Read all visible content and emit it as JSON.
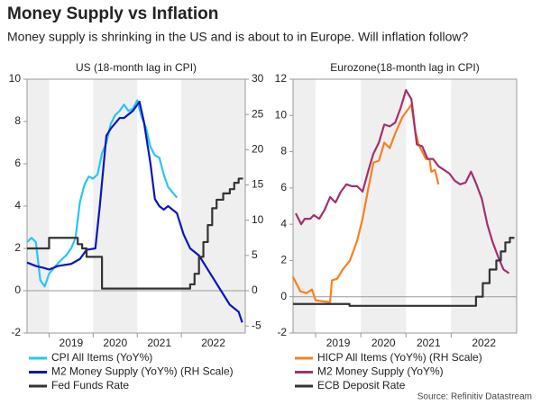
{
  "title": "Money Supply vs Inflation",
  "subtitle": "Money supply is shrinking in the US and is about to in Europe. Will inflation follow?",
  "source": "Source: Refinitiv Datastream",
  "chart_data": [
    {
      "type": "line",
      "title": "US (18-month lag in CPI)",
      "xlim": [
        2018.5,
        2023.45
      ],
      "xticks": [
        2019,
        2020,
        2021,
        2022
      ],
      "alternate_shading": true,
      "ylim": [
        -2,
        10
      ],
      "yticks": [
        -2,
        0,
        2,
        4,
        6,
        8,
        10
      ],
      "y2lim": [
        -6,
        30
      ],
      "y2ticks": [
        -5,
        0,
        5,
        10,
        15,
        20,
        25,
        30
      ],
      "series": [
        {
          "name": "CPI All Items (YoY%)",
          "color": "#29c5f6",
          "x": [
            2018.5,
            2018.6,
            2018.7,
            2018.8,
            2018.9,
            2019.0,
            2019.2,
            2019.4,
            2019.5,
            2019.6,
            2019.7,
            2019.8,
            2019.9,
            2020.0,
            2020.1,
            2020.2,
            2020.3,
            2020.4,
            2020.5,
            2020.6,
            2020.7,
            2020.8,
            2020.9,
            2021.0,
            2021.1,
            2021.2,
            2021.3,
            2021.4,
            2021.5,
            2021.6,
            2021.7,
            2021.9
          ],
          "values": [
            2.3,
            2.5,
            2.3,
            0.5,
            0.2,
            0.8,
            1.3,
            1.7,
            2.0,
            2.5,
            4.2,
            5.0,
            5.4,
            5.3,
            5.5,
            6.5,
            7.0,
            7.9,
            8.3,
            8.5,
            8.8,
            8.5,
            8.6,
            9.0,
            8.2,
            7.7,
            6.8,
            6.4,
            6.3,
            5.5,
            4.9,
            4.4
          ]
        },
        {
          "name": "M2 Money Supply (YoY%) (RH Scale)",
          "color": "#0a17b5",
          "axis": "y2",
          "x": [
            2018.5,
            2018.7,
            2018.9,
            2019.0,
            2019.2,
            2019.5,
            2019.7,
            2019.85,
            2020.05,
            2020.15,
            2020.3,
            2020.4,
            2020.6,
            2020.7,
            2020.8,
            2020.9,
            2021.05,
            2021.15,
            2021.3,
            2021.4,
            2021.5,
            2021.6,
            2021.7,
            2021.9,
            2022.05,
            2022.2,
            2022.4,
            2022.7,
            2022.9,
            2023.1,
            2023.3,
            2023.38
          ],
          "values": [
            4,
            3.5,
            3.2,
            3,
            3.5,
            3.8,
            4.5,
            5.8,
            6,
            12,
            22,
            23,
            24.5,
            24.5,
            25,
            25.5,
            26.8,
            24,
            18,
            13,
            12,
            11.5,
            12,
            11,
            8,
            6,
            5,
            2,
            0,
            -2,
            -3,
            -4.5
          ]
        },
        {
          "name": "Fed Funds Rate",
          "color": "#333333",
          "x": [
            2018.5,
            2019.0,
            2019.0,
            2019.65,
            2019.65,
            2019.75,
            2019.75,
            2019.85,
            2019.85,
            2020.2,
            2020.2,
            2022.2,
            2022.2,
            2022.3,
            2022.3,
            2022.4,
            2022.4,
            2022.5,
            2022.5,
            2022.6,
            2022.6,
            2022.7,
            2022.7,
            2022.8,
            2022.8,
            2022.95,
            2022.95,
            2023.1,
            2023.1,
            2023.2,
            2023.2,
            2023.3,
            2023.3,
            2023.4
          ],
          "values": [
            2.0,
            2.0,
            2.5,
            2.5,
            2.2,
            2.2,
            2.0,
            2.0,
            1.6,
            1.6,
            0.1,
            0.1,
            0.3,
            0.3,
            0.8,
            0.8,
            1.6,
            1.6,
            2.3,
            2.3,
            3.1,
            3.1,
            3.9,
            3.9,
            4.3,
            4.3,
            4.6,
            4.6,
            4.8,
            4.8,
            5.1,
            5.1,
            5.3,
            5.3
          ]
        }
      ]
    },
    {
      "type": "line",
      "title": "Eurozone(18-month lag in CPI)",
      "xlim": [
        2018.5,
        2023.45
      ],
      "xticks": [
        2019,
        2020,
        2021,
        2022
      ],
      "alternate_shading": true,
      "ylim": [
        -2,
        12
      ],
      "yticks": [
        -2,
        0,
        2,
        4,
        6,
        8,
        10,
        12
      ],
      "series": [
        {
          "name": "HICP All Items (YoY%) (RH Scale)",
          "color": "#f7811e",
          "x": [
            2018.5,
            2018.66,
            2018.8,
            2018.92,
            2019.0,
            2019.32,
            2019.36,
            2019.48,
            2019.6,
            2019.76,
            2019.92,
            2020.04,
            2020.16,
            2020.28,
            2020.4,
            2020.52,
            2020.64,
            2020.76,
            2020.92,
            2021.12,
            2021.2,
            2021.28,
            2021.36,
            2021.44,
            2021.52,
            2021.56,
            2021.64,
            2021.72
          ],
          "values": [
            1.1,
            0.3,
            0.2,
            0.4,
            -0.2,
            -0.3,
            0.9,
            1.0,
            1.5,
            2.0,
            3.1,
            4.3,
            5.9,
            7.4,
            7.5,
            8.5,
            8.2,
            9.0,
            9.9,
            10.6,
            9.2,
            8.4,
            8.0,
            7.6,
            7.6,
            6.9,
            7.0,
            6.2
          ]
        },
        {
          "name": "M2 Money Supply (YoY%)",
          "color": "#a3306f",
          "x": [
            2018.56,
            2018.68,
            2018.76,
            2018.88,
            2018.96,
            2019.08,
            2019.2,
            2019.32,
            2019.44,
            2019.56,
            2019.68,
            2019.8,
            2019.92,
            2020.04,
            2020.16,
            2020.28,
            2020.4,
            2020.52,
            2020.64,
            2020.76,
            2020.88,
            2021.0,
            2021.12,
            2021.24,
            2021.36,
            2021.48,
            2021.6,
            2021.72,
            2021.84,
            2021.96,
            2022.08,
            2022.2,
            2022.32,
            2022.44,
            2022.56,
            2022.68,
            2022.8,
            2022.92,
            2023.04,
            2023.16,
            2023.28
          ],
          "values": [
            4.6,
            4.0,
            4.3,
            4.3,
            4.5,
            4.3,
            4.8,
            5.5,
            5.2,
            5.8,
            6.2,
            6.1,
            6.1,
            5.8,
            6.9,
            7.9,
            8.5,
            9.5,
            9.4,
            9.6,
            10.4,
            11.4,
            10.9,
            8.4,
            8.3,
            7.6,
            7.6,
            7.2,
            7.0,
            6.8,
            6.4,
            6.2,
            6.3,
            6.9,
            6.2,
            5.4,
            4.0,
            3.0,
            2.2,
            1.5,
            1.3
          ]
        },
        {
          "name": "ECB Deposit Rate",
          "color": "#333333",
          "x": [
            2018.5,
            2019.75,
            2019.75,
            2022.55,
            2022.55,
            2022.7,
            2022.7,
            2022.85,
            2022.85,
            2023.0,
            2023.0,
            2023.1,
            2023.1,
            2023.2,
            2023.2,
            2023.3,
            2023.3,
            2023.4
          ],
          "values": [
            -0.4,
            -0.4,
            -0.5,
            -0.5,
            0,
            0,
            0.75,
            0.75,
            1.5,
            1.5,
            2.0,
            2.0,
            2.5,
            2.5,
            3.0,
            3.0,
            3.25,
            3.25
          ]
        }
      ]
    }
  ]
}
